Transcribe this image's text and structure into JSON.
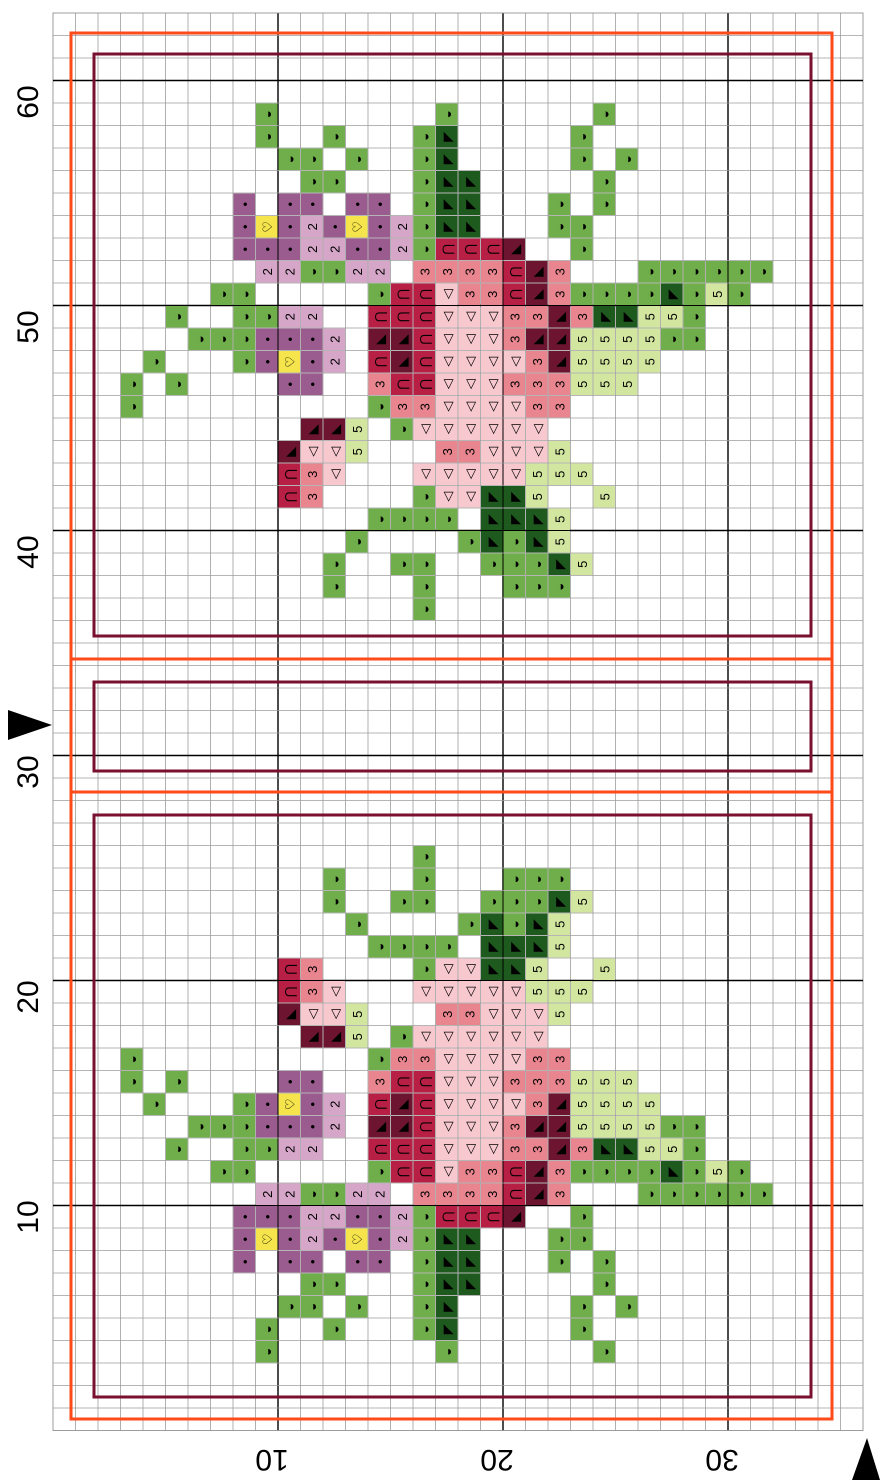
{
  "pattern": {
    "type": "cross-stitch chart",
    "rotation": "90deg clockwise",
    "colors": {
      "pale_green": "#d3e6a0",
      "mid_green": "#6fae4a",
      "dark_green": "#1e5a1e",
      "light_pink": "#f7c9cf",
      "mid_pink": "#e8858f",
      "deep_rose": "#b81f45",
      "wine": "#6d1430",
      "mauve": "#9a5c8e",
      "light_mauve": "#d6a6c9",
      "yellow": "#f5e44c",
      "outer_border": "#ff4a1a",
      "inner_border": "#7a1030",
      "grid": "#9c9c9c",
      "major_grid": "#000000"
    },
    "symbols": {
      "pale_green": "5",
      "mid_green": "◒",
      "dark_green": "◤",
      "light_pink": "◁",
      "mid_pink": "3",
      "deep_rose": "⋂",
      "wine": "◣",
      "mauve": "•",
      "light_mauve": "2",
      "yellow": "♡"
    }
  },
  "axes": {
    "vertical_labels": [
      "60",
      "50",
      "40",
      "30",
      "20",
      "10"
    ],
    "horizontal_labels": [
      "10",
      "20",
      "30"
    ],
    "center_markers": [
      "center-arrow-left",
      "center-arrow-bottom"
    ]
  }
}
